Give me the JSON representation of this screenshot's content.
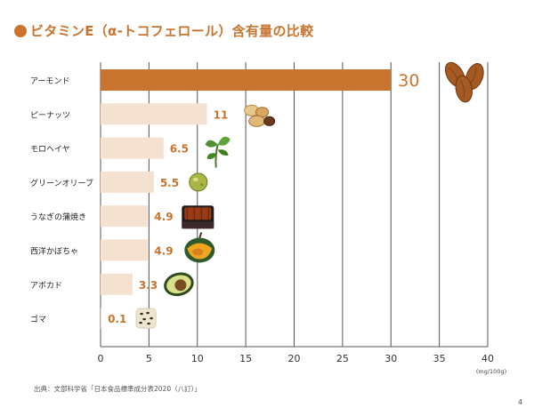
{
  "title": "ビタミンE（α-トコフェロール）含有量の比較",
  "source": "出典：文部科学省「日本食品標準成分表2020（八訂）」",
  "page_number": "4",
  "colors": {
    "title": "#c8732e",
    "highlight_bar": "#c8732e",
    "bar": "#f5e1cf",
    "value_label": "#c8732e",
    "highlight_label": "#c8732e",
    "grid": "#555555"
  },
  "chart_data": {
    "type": "bar",
    "orientation": "horizontal",
    "categories": [
      "アーモンド",
      "ピーナッツ",
      "モロヘイヤ",
      "グリーンオリーブ",
      "うなぎの蒲焼き",
      "西洋かぼちゃ",
      "アボカド",
      "ゴマ"
    ],
    "values": [
      30,
      11,
      6.5,
      5.5,
      4.9,
      4.9,
      3.3,
      0.1
    ],
    "value_labels": [
      "30",
      "11",
      "6.5",
      "5.5",
      "4.9",
      "4.9",
      "3.3",
      "0.1"
    ],
    "highlighted_index": 0,
    "xlim": [
      0,
      40
    ],
    "xticks": [
      "0",
      "5",
      "10",
      "15",
      "20",
      "25",
      "30",
      "35",
      "40"
    ],
    "xlabel": "",
    "ylabel": "",
    "unit_label": "(mg/100g)",
    "grid": "vertical",
    "icons": [
      "almond-icon",
      "peanut-icon",
      "molokheiya-leaf-icon",
      "green-olive-icon",
      "unagi-kabayaki-icon",
      "pumpkin-icon",
      "avocado-icon",
      "sesame-icon"
    ]
  }
}
